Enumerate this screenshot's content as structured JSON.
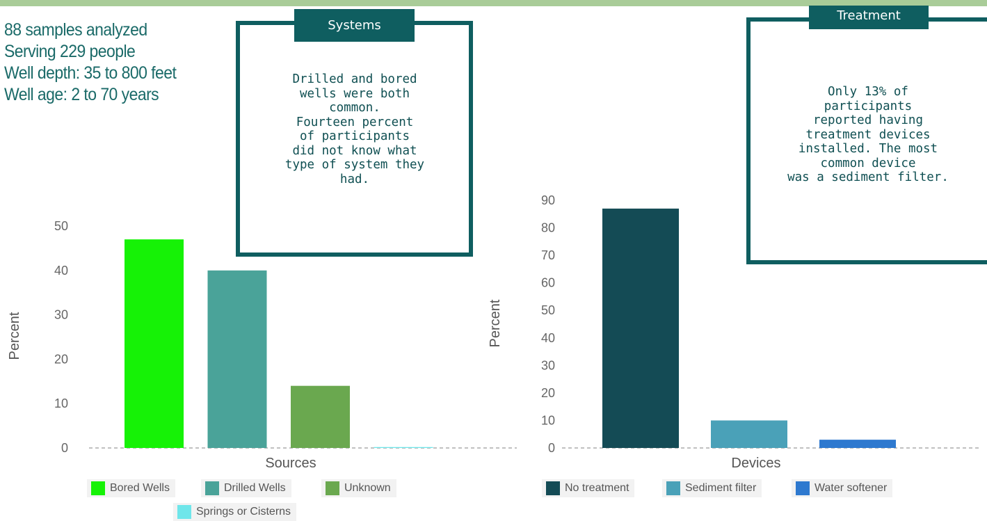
{
  "summary": {
    "line1": "88 samples analyzed",
    "line2": "Serving 229 people",
    "line3": "Well depth: 35 to 800 feet",
    "line4": "Well age: 2 to 70 years"
  },
  "systems_callout": {
    "title": "Systems",
    "text": "Drilled and bored\nwells were both\ncommon.\nFourteen percent\nof participants\ndid not know what\ntype of system they\nhad."
  },
  "treatment_callout": {
    "title": "Treatment",
    "text": "Only 13% of\nparticipants\nreported having\ntreatment devices\ninstalled. The most\ncommon device\nwas a sediment filter."
  },
  "chart_data": [
    {
      "type": "bar",
      "categories": [
        "Bored Wells",
        "Drilled Wells",
        "Unknown",
        "Springs or Cisterns"
      ],
      "values": [
        47,
        40,
        14,
        0.2
      ],
      "colors": [
        "#16f206",
        "#4aa399",
        "#6aa84f",
        "#6fe6ea"
      ],
      "xlabel": "Sources",
      "ylabel": "Percent",
      "ylim": [
        0,
        50
      ],
      "yticks": [
        0,
        10,
        20,
        30,
        40,
        50
      ],
      "grid": false,
      "legend": "bottom"
    },
    {
      "type": "bar",
      "categories": [
        "No treatment",
        "Sediment filter",
        "Water softener"
      ],
      "values": [
        87,
        10,
        3
      ],
      "colors": [
        "#144b55",
        "#4aa1b8",
        "#2e79cf"
      ],
      "xlabel": "Devices",
      "ylabel": "Percent",
      "ylim": [
        0,
        90
      ],
      "yticks": [
        0,
        10,
        20,
        30,
        40,
        50,
        60,
        70,
        80,
        90
      ],
      "grid": false,
      "legend": "bottom"
    }
  ]
}
